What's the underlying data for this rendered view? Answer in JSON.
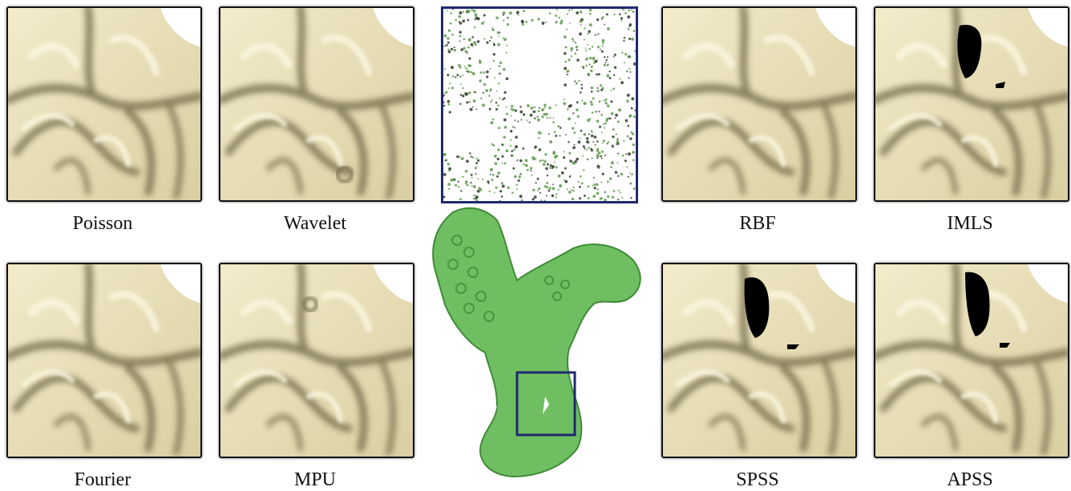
{
  "figure": {
    "panels": [
      {
        "id": "poisson",
        "label": "Poisson"
      },
      {
        "id": "wavelet",
        "label": "Wavelet"
      },
      {
        "id": "rbf",
        "label": "RBF"
      },
      {
        "id": "imls",
        "label": "IMLS"
      },
      {
        "id": "fourier",
        "label": "Fourier"
      },
      {
        "id": "mpu",
        "label": "MPU"
      },
      {
        "id": "spss",
        "label": "SPSS"
      },
      {
        "id": "apss",
        "label": "APSS"
      }
    ],
    "colors": {
      "surface": "#efe6c0",
      "shadow": "#6b6240",
      "hole": "#000000",
      "points": "#5e9a4c",
      "model": "#6fbf62",
      "frame": "#1e2a6e"
    }
  }
}
